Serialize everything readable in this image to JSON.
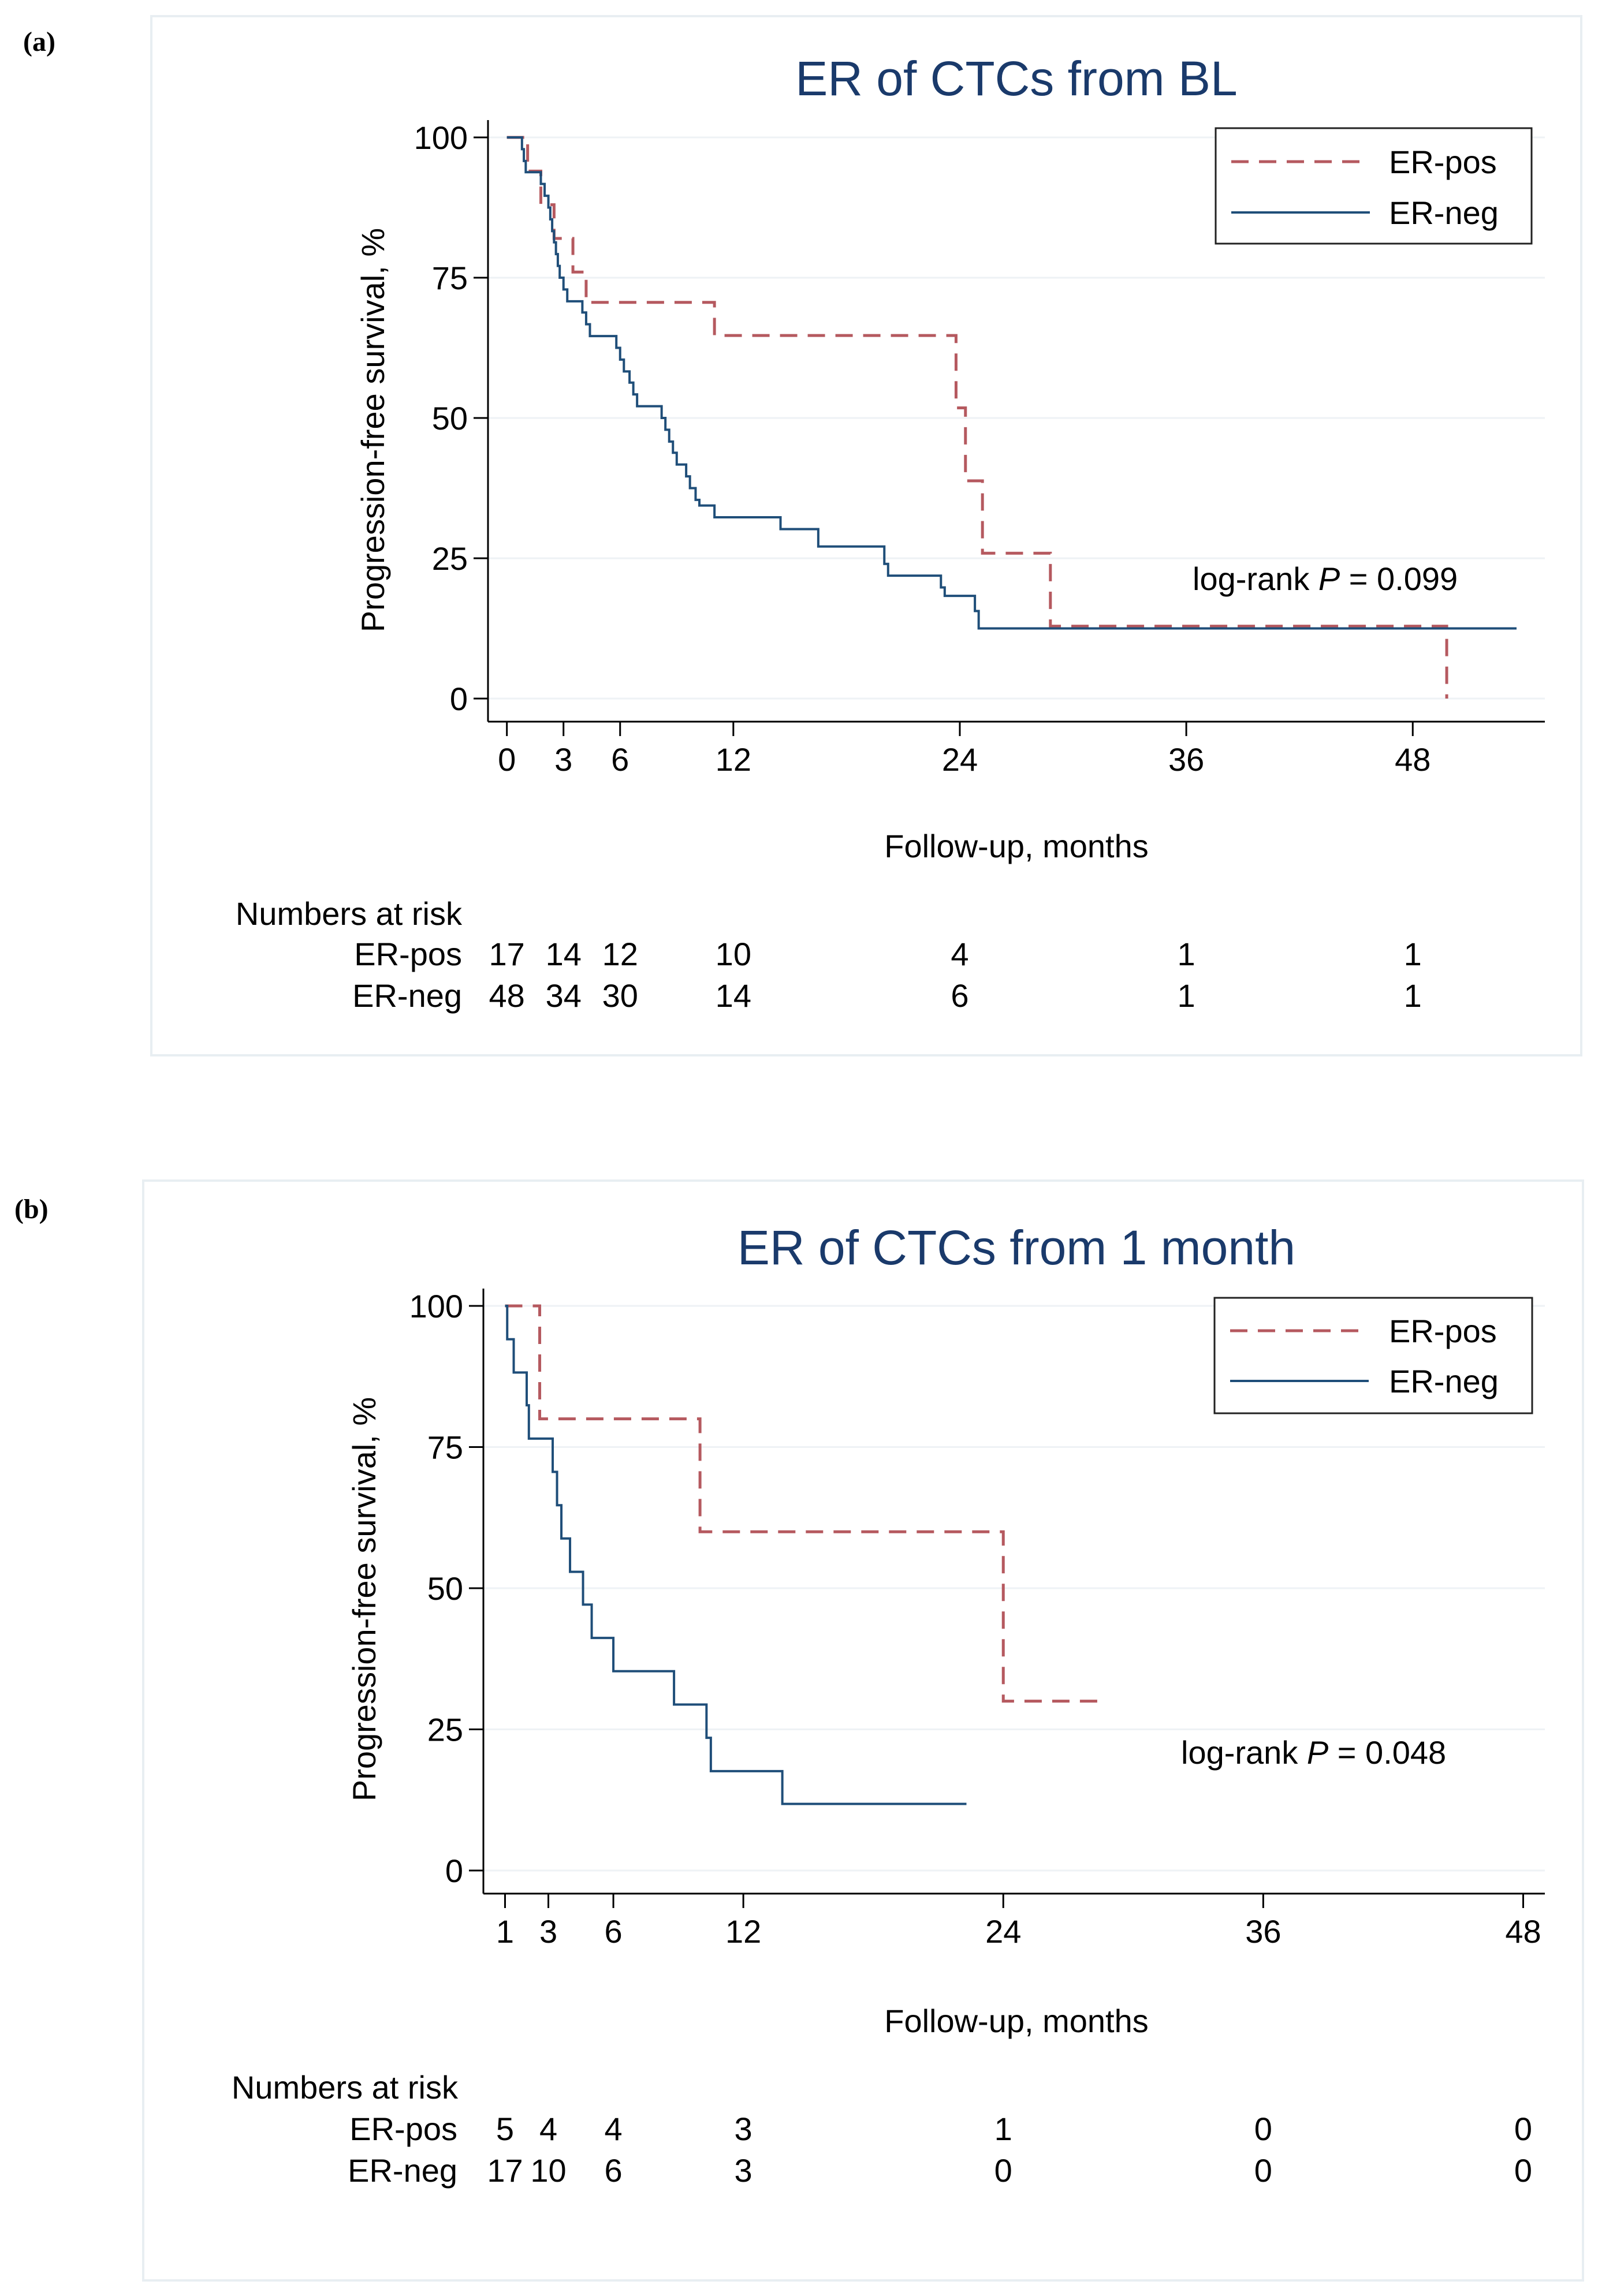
{
  "chart_data": [
    {
      "panel_label": "(a)",
      "type": "line",
      "title": "ER of CTCs from BL",
      "xlabel": "Follow-up, months",
      "ylabel": "Progression-free survival, %",
      "xlim": [
        -1,
        55
      ],
      "ylim": [
        0,
        100
      ],
      "x_ticks": [
        0,
        3,
        6,
        12,
        24,
        36,
        48
      ],
      "y_ticks": [
        0,
        25,
        50,
        75,
        100
      ],
      "grid": true,
      "legend": {
        "position": "top-right",
        "entries": [
          "ER-pos",
          "ER-neg"
        ]
      },
      "annotation": {
        "prefix": "log-rank ",
        "p_symbol": "P",
        "suffix": " = 0.099",
        "x": 42,
        "y": 25
      },
      "series": [
        {
          "name": "ER-pos",
          "color": "#b5595f",
          "dash": "dashed",
          "steps": [
            [
              0,
              100
            ],
            [
              1.1,
              94
            ],
            [
              1.8,
              88
            ],
            [
              2.5,
              82
            ],
            [
              3.5,
              76
            ],
            [
              4.2,
              70.6
            ],
            [
              11,
              64.7
            ],
            [
              23.8,
              51.8
            ],
            [
              24.3,
              38.8
            ],
            [
              25.2,
              25.9
            ],
            [
              28.8,
              12.9
            ],
            [
              49.8,
              0
            ]
          ]
        },
        {
          "name": "ER-neg",
          "color": "#1f4e79",
          "dash": "solid",
          "steps": [
            [
              0,
              100
            ],
            [
              0.8,
              97.9
            ],
            [
              0.9,
              95.8
            ],
            [
              1,
              93.8
            ],
            [
              1.8,
              91.7
            ],
            [
              2,
              89.6
            ],
            [
              2.2,
              87.5
            ],
            [
              2.3,
              85.4
            ],
            [
              2.4,
              83.3
            ],
            [
              2.5,
              81.3
            ],
            [
              2.6,
              79.2
            ],
            [
              2.7,
              77.1
            ],
            [
              2.8,
              75
            ],
            [
              3,
              72.9
            ],
            [
              3.2,
              70.8
            ],
            [
              4,
              68.8
            ],
            [
              4.2,
              66.7
            ],
            [
              4.4,
              64.6
            ],
            [
              5.8,
              62.5
            ],
            [
              6,
              60.4
            ],
            [
              6.2,
              58.3
            ],
            [
              6.5,
              56.3
            ],
            [
              6.7,
              54.2
            ],
            [
              6.9,
              52.1
            ],
            [
              8.2,
              50
            ],
            [
              8.4,
              47.9
            ],
            [
              8.6,
              45.8
            ],
            [
              8.8,
              43.8
            ],
            [
              9,
              41.7
            ],
            [
              9.5,
              39.6
            ],
            [
              9.7,
              37.5
            ],
            [
              10,
              35.4
            ],
            [
              10.2,
              34.4
            ],
            [
              11,
              32.3
            ],
            [
              14.5,
              30.2
            ],
            [
              16.5,
              27.1
            ],
            [
              20,
              24
            ],
            [
              20.2,
              21.9
            ],
            [
              23,
              19.8
            ],
            [
              23.2,
              18.3
            ],
            [
              24.8,
              15.6
            ],
            [
              25,
              12.5
            ]
          ],
          "end": 53.5
        }
      ],
      "risk_table": {
        "heading": "Numbers at risk",
        "x_positions": [
          0,
          3,
          6,
          12,
          24,
          36,
          48
        ],
        "rows": [
          {
            "label": "ER-pos",
            "values": [
              "17",
              "14",
              "12",
              "10",
              "4",
              "1",
              "1"
            ]
          },
          {
            "label": "ER-neg",
            "values": [
              "48",
              "34",
              "30",
              "14",
              "6",
              "1",
              "1"
            ]
          }
        ]
      }
    },
    {
      "panel_label": "(b)",
      "type": "line",
      "title": "ER of CTCs from 1 month",
      "xlabel": "Follow-up, months",
      "ylabel": "Progression-free survival, %",
      "xlim": [
        0,
        49
      ],
      "ylim": [
        0,
        100
      ],
      "x_ticks": [
        1,
        3,
        6,
        12,
        24,
        36,
        48
      ],
      "y_ticks": [
        0,
        25,
        50,
        75,
        100
      ],
      "grid": true,
      "legend": {
        "position": "top-right",
        "entries": [
          "ER-pos",
          "ER-neg"
        ]
      },
      "annotation": {
        "prefix": "log-rank ",
        "p_symbol": "P",
        "suffix": " = 0.048",
        "x": 40,
        "y": 25
      },
      "series": [
        {
          "name": "ER-pos",
          "color": "#b5595f",
          "dash": "dashed",
          "steps": [
            [
              1,
              100
            ],
            [
              2.6,
              80
            ],
            [
              10,
              60
            ],
            [
              24,
              30
            ]
          ],
          "end": 28.5
        },
        {
          "name": "ER-neg",
          "color": "#1f4e79",
          "dash": "solid",
          "steps": [
            [
              1,
              100
            ],
            [
              1.1,
              94.1
            ],
            [
              1.4,
              88.2
            ],
            [
              2,
              82.4
            ],
            [
              2.1,
              76.5
            ],
            [
              3.2,
              70.6
            ],
            [
              3.4,
              64.7
            ],
            [
              3.6,
              58.8
            ],
            [
              4,
              52.9
            ],
            [
              4.6,
              47.1
            ],
            [
              5,
              41.2
            ],
            [
              6,
              35.3
            ],
            [
              8.8,
              29.4
            ],
            [
              10.3,
              23.5
            ],
            [
              10.5,
              17.6
            ],
            [
              13.8,
              11.8
            ]
          ],
          "end": 22.3
        }
      ],
      "risk_table": {
        "heading": "Numbers at risk",
        "x_positions": [
          1,
          3,
          6,
          12,
          24,
          36,
          48
        ],
        "rows": [
          {
            "label": "ER-pos",
            "values": [
              "5",
              "4",
              "4",
              "3",
              "1",
              "0",
              "0"
            ]
          },
          {
            "label": "ER-neg",
            "values": [
              "17",
              "10",
              "6",
              "3",
              "0",
              "0",
              "0"
            ]
          }
        ]
      }
    }
  ]
}
